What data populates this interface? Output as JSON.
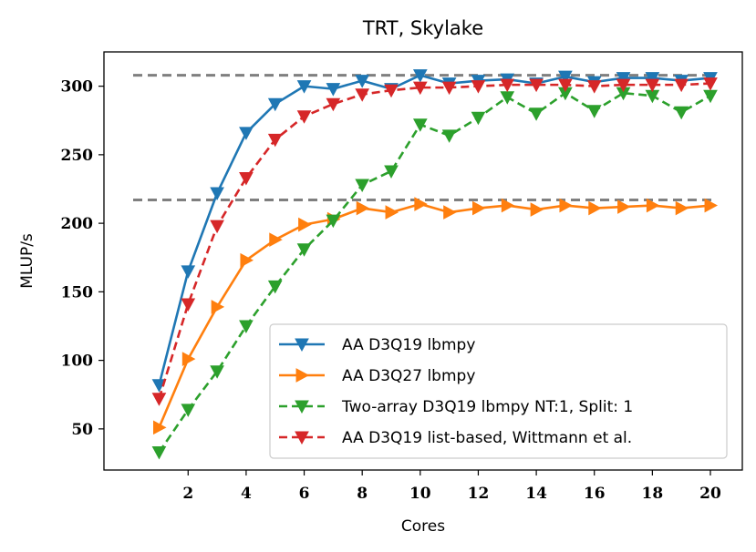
{
  "chart_data": {
    "type": "line",
    "title": "TRT, Skylake",
    "xlabel": "Cores",
    "ylabel": "MLUP/s",
    "xlim": [
      -0.9,
      21.1
    ],
    "ylim": [
      20,
      325
    ],
    "xticks": [
      2,
      4,
      6,
      8,
      10,
      12,
      14,
      16,
      18,
      20
    ],
    "yticks": [
      50,
      100,
      150,
      200,
      250,
      300
    ],
    "grid": false,
    "legend_position": "lower-right",
    "x": [
      1,
      2,
      3,
      4,
      5,
      6,
      7,
      8,
      9,
      10,
      11,
      12,
      13,
      14,
      15,
      16,
      17,
      18,
      19,
      20
    ],
    "reference_lines": [
      308,
      217
    ],
    "reference_color": "#7f7f7f",
    "series": [
      {
        "name": "AA D3Q19 lbmpy",
        "color": "#1f77b4",
        "linestyle": "solid",
        "marker": "triangle-down",
        "values": [
          82,
          165,
          222,
          266,
          287,
          300,
          298,
          304,
          298,
          308,
          302,
          304,
          305,
          302,
          307,
          303,
          306,
          306,
          304,
          306
        ]
      },
      {
        "name": "AA D3Q27 lbmpy",
        "color": "#ff7f0e",
        "linestyle": "solid",
        "marker": "triangle-right",
        "values": [
          51,
          101,
          139,
          173,
          188,
          199,
          203,
          211,
          208,
          214,
          208,
          211,
          213,
          210,
          213,
          211,
          212,
          213,
          211,
          213
        ]
      },
      {
        "name": "Two-array D3Q19 lbmpy NT:1, Split: 1",
        "color": "#2ca02c",
        "linestyle": "dashed",
        "marker": "triangle-down",
        "values": [
          33,
          64,
          92,
          125,
          154,
          181,
          202,
          228,
          238,
          272,
          264,
          277,
          292,
          280,
          295,
          282,
          295,
          293,
          281,
          293
        ]
      },
      {
        "name": "AA D3Q19 list-based, Wittmann et al.",
        "color": "#d62728",
        "linestyle": "dashed",
        "marker": "triangle-down",
        "values": [
          72,
          141,
          198,
          233,
          261,
          278,
          287,
          294,
          297,
          299,
          299,
          300,
          301,
          301,
          301,
          300,
          301,
          301,
          301,
          302
        ]
      }
    ]
  }
}
